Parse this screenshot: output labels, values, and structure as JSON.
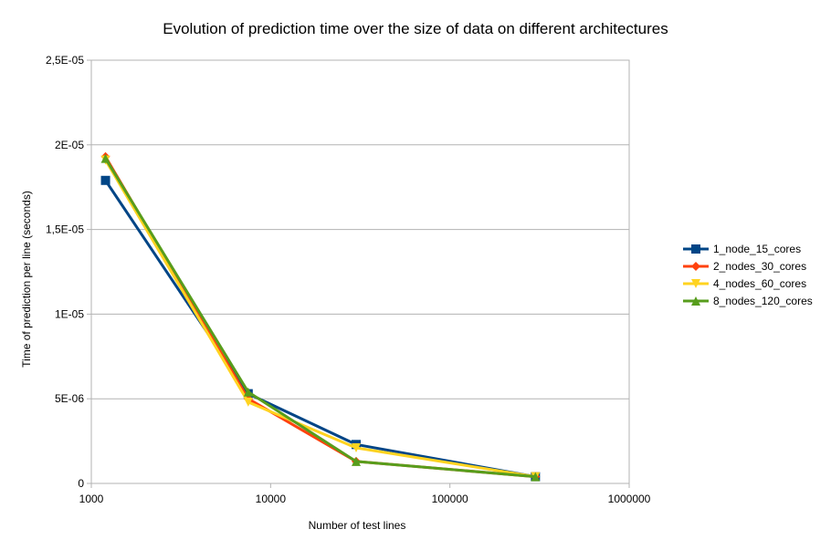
{
  "chart_data": {
    "type": "line",
    "title": "Evolution of prediction time over the size of data on different architectures",
    "xlabel": "Number of test lines",
    "ylabel": "Time of prediction per line (seconds)",
    "x_scale": "log",
    "xlim": [
      1000,
      1000000
    ],
    "ylim": [
      0,
      2.5e-05
    ],
    "x_ticks": [
      1000,
      10000,
      100000,
      1000000
    ],
    "x_tick_labels": [
      "1000",
      "10000",
      "100000",
      "1000000"
    ],
    "y_ticks": [
      0,
      5e-06,
      1e-05,
      1.5e-05,
      2e-05,
      2.5e-05
    ],
    "y_tick_labels": [
      "0",
      "5E-06",
      "1E-05",
      "1,5E-05",
      "2E-05",
      "2,5E-05"
    ],
    "grid": "horizontal",
    "legend_position": "right",
    "x": [
      1200,
      7500,
      30000,
      300000
    ],
    "series": [
      {
        "name": "1_node_15_cores",
        "color": "#004586",
        "marker": "square",
        "values": [
          1.79e-05,
          5.3e-06,
          2.3e-06,
          4e-07
        ]
      },
      {
        "name": "2_nodes_30_cores",
        "color": "#ff420e",
        "marker": "diamond",
        "values": [
          1.93e-05,
          5e-06,
          1.3e-06,
          4e-07
        ]
      },
      {
        "name": "4_nodes_60_cores",
        "color": "#ffd320",
        "marker": "triangle-down",
        "values": [
          1.91e-05,
          4.8e-06,
          2.1e-06,
          4e-07
        ]
      },
      {
        "name": "8_nodes_120_cores",
        "color": "#579d1c",
        "marker": "triangle-up",
        "values": [
          1.92e-05,
          5.4e-06,
          1.3e-06,
          4e-07
        ]
      }
    ]
  }
}
